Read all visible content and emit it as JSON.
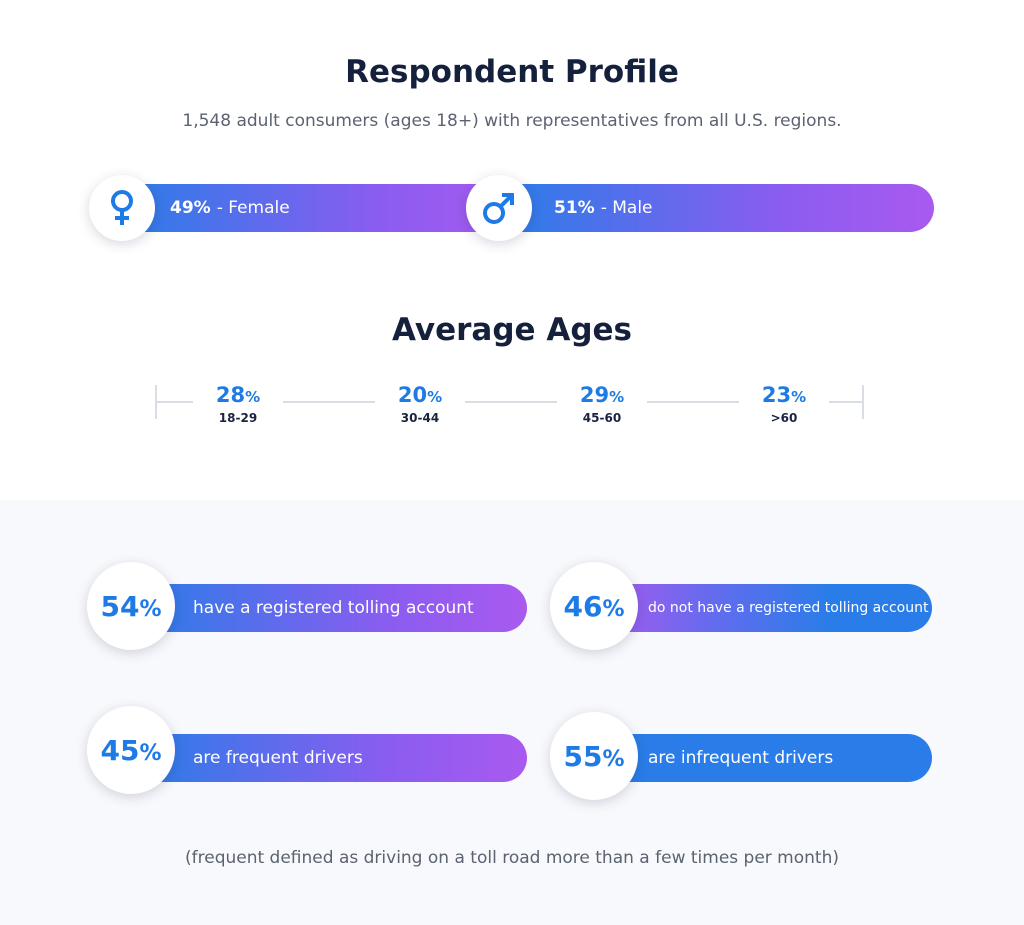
{
  "title": "Respondent Profile",
  "subtitle": "1,548 adult consumers (ages 18+) with representatives from all U.S. regions.",
  "gender": [
    {
      "pct": "49%",
      "label": "- Female",
      "icon": "female-symbol-icon",
      "value": 49
    },
    {
      "pct": "51%",
      "label": "- Male",
      "icon": "male-symbol-icon",
      "value": 51
    }
  ],
  "ages_title": "Average Ages",
  "chart_data": {
    "type": "bar",
    "title": "Average Ages",
    "categories": [
      "18-29",
      "30-44",
      "45-60",
      ">60"
    ],
    "values": [
      28,
      20,
      29,
      23
    ],
    "unit": "%"
  },
  "stats": [
    {
      "pct": "54",
      "label": "have a registered tolling account",
      "value": 54
    },
    {
      "pct": "46",
      "label": "do not have a registered tolling account",
      "value": 46
    },
    {
      "pct": "45",
      "label": "are frequent drivers",
      "value": 45
    },
    {
      "pct": "55",
      "label": "are infrequent drivers",
      "value": 55
    }
  ],
  "percent_sign": "%",
  "footnote": "(frequent defined as driving on a toll road more than a few times per month)",
  "colors": {
    "blue": "#2a7de8",
    "purple": "#a95aef",
    "text": "#15203d",
    "band": "#f8f9fc"
  }
}
